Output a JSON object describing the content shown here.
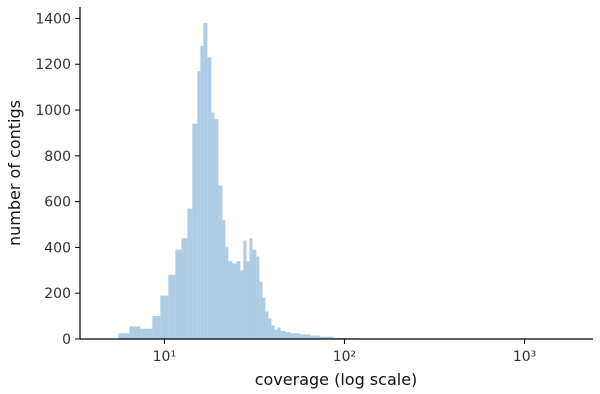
{
  "chart_data": {
    "type": "histogram",
    "xlabel": "coverage (log scale)",
    "ylabel": "number of contigs",
    "xscale": "log",
    "color": "#aecce4",
    "bins": [
      5.55,
      6.39,
      7.36,
      8.58,
      9.5,
      10.52,
      11.51,
      12.43,
      13.42,
      14.31,
      15.26,
      15.85,
      16.47,
      17.33,
      18.24,
      18.96,
      19.95,
      21.0,
      21.83,
      22.68,
      23.87,
      25.12,
      26.44,
      27.47,
      28.55,
      29.67,
      30.83,
      32.44,
      33.71,
      35.03,
      36.4,
      37.83,
      39.31,
      40.84,
      42.44,
      44.11,
      47.03,
      50.12,
      56.95,
      64.72,
      73.56,
      86.88,
      101.3,
      122.7,
      158.5,
      264.4,
      569.5,
      1585,
      2183
    ],
    "values": [
      25,
      55,
      45,
      100,
      190,
      280,
      390,
      440,
      570,
      940,
      1170,
      1280,
      1380,
      1230,
      990,
      960,
      670,
      520,
      400,
      340,
      330,
      340,
      300,
      430,
      340,
      440,
      390,
      360,
      250,
      180,
      120,
      90,
      60,
      40,
      50,
      35,
      30,
      25,
      20,
      15,
      10,
      5,
      3,
      2,
      1,
      1,
      1,
      1
    ],
    "xlim": [
      3.4,
      2400
    ],
    "xticks": [
      {
        "value": 10,
        "label": "10¹"
      },
      {
        "value": 100,
        "label": "10²"
      },
      {
        "value": 1000,
        "label": "10³"
      }
    ],
    "ylim": [
      0,
      1450
    ],
    "yticks": [
      0,
      200,
      400,
      600,
      800,
      1000,
      1200,
      1400
    ]
  }
}
